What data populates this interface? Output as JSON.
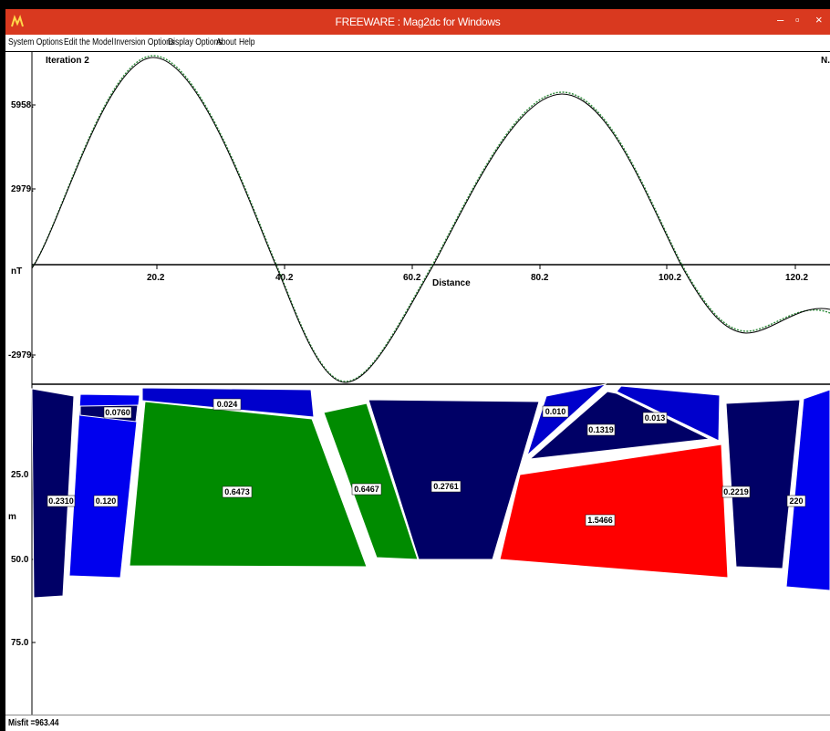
{
  "window": {
    "title": "FREEWARE : Mag2dc for Windows",
    "controls": {
      "minimize": "–",
      "maximize": "▫",
      "close": "×"
    }
  },
  "menu": {
    "items": [
      {
        "label": "System Options"
      },
      {
        "label": "Edit the Model"
      },
      {
        "label": "Inversion Options"
      },
      {
        "label": "Display Options"
      },
      {
        "label": "About"
      },
      {
        "label": "Help"
      }
    ]
  },
  "profile": {
    "iteration_label": "Iteration 2",
    "corner_label": "N.",
    "unit_label": "nT",
    "x_axis_label": "Distance",
    "y_ticks": [
      "5958.",
      "2979.",
      "-2979."
    ],
    "x_ticks": [
      "20.2",
      "40.2",
      "60.2",
      "80.2",
      "100.2",
      "120.2"
    ],
    "series_colors": {
      "observed": "#2e8b3a",
      "calculated": "#000000"
    }
  },
  "section": {
    "unit_label": "m",
    "depth_ticks": [
      "25.0",
      "50.0",
      "75.0"
    ],
    "bodies": [
      {
        "label": "0.2310",
        "color": "#000066"
      },
      {
        "label": "0.120",
        "color": "#0000ee"
      },
      {
        "label": "0.0760",
        "color": "#000066"
      },
      {
        "label": "0.024",
        "color": "#0000cc"
      },
      {
        "label": "0.6473",
        "color": "#008b00"
      },
      {
        "label": "0.6467",
        "color": "#008b00"
      },
      {
        "label": "0.2761",
        "color": "#000066"
      },
      {
        "label": "0.010",
        "color": "#0000cc"
      },
      {
        "label": "0.1319",
        "color": "#000066"
      },
      {
        "label": "0.013",
        "color": "#0000cc"
      },
      {
        "label": "1.5466",
        "color": "#ff0000"
      },
      {
        "label": "0.2219",
        "color": "#000066"
      },
      {
        "label": "220",
        "color": "#0000ee"
      }
    ]
  },
  "status": {
    "misfit": "Misfit =963.44"
  }
}
